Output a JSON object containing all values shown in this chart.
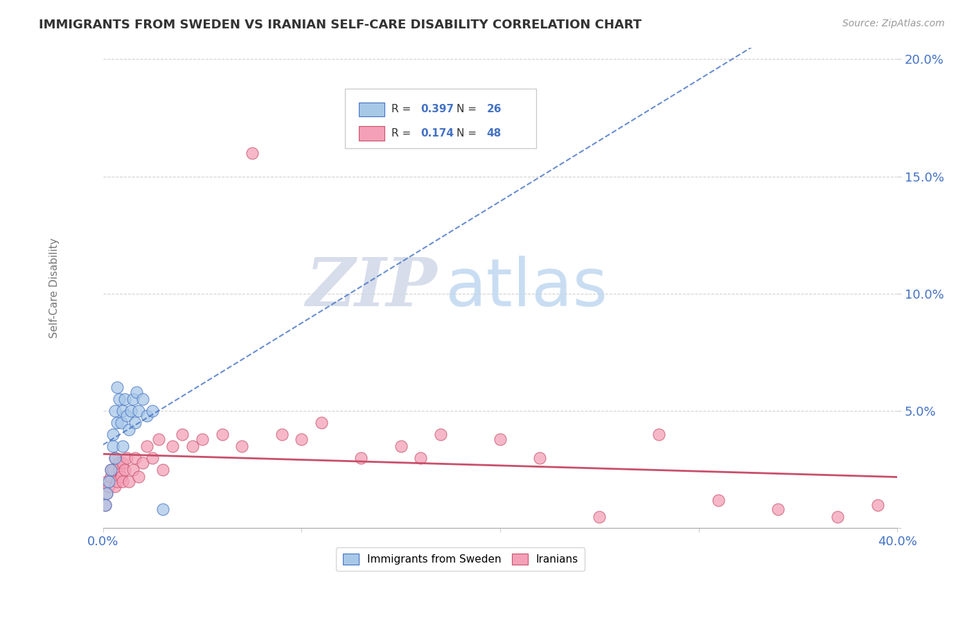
{
  "title": "IMMIGRANTS FROM SWEDEN VS IRANIAN SELF-CARE DISABILITY CORRELATION CHART",
  "source": "Source: ZipAtlas.com",
  "ylabel": "Self-Care Disability",
  "xlim": [
    0.0,
    0.4
  ],
  "ylim": [
    0.0,
    0.205
  ],
  "xticks": [
    0.0,
    0.1,
    0.2,
    0.3,
    0.4
  ],
  "xtick_labels": [
    "0.0%",
    "",
    "",
    "",
    "40.0%"
  ],
  "yticks": [
    0.0,
    0.05,
    0.1,
    0.15,
    0.2
  ],
  "ytick_labels": [
    "",
    "5.0%",
    "10.0%",
    "15.0%",
    "20.0%"
  ],
  "color_sweden": "#A8C8E8",
  "color_iran": "#F4A0B8",
  "color_line_sweden": "#4472C4",
  "color_line_iran": "#C8506A",
  "background_color": "#FFFFFF",
  "watermark_zip": "ZIP",
  "watermark_atlas": "atlas",
  "sweden_x": [
    0.001,
    0.002,
    0.003,
    0.004,
    0.005,
    0.005,
    0.006,
    0.006,
    0.007,
    0.007,
    0.008,
    0.009,
    0.01,
    0.01,
    0.011,
    0.012,
    0.013,
    0.014,
    0.015,
    0.016,
    0.017,
    0.018,
    0.02,
    0.022,
    0.025,
    0.03
  ],
  "sweden_y": [
    0.01,
    0.015,
    0.02,
    0.025,
    0.035,
    0.04,
    0.03,
    0.05,
    0.045,
    0.06,
    0.055,
    0.045,
    0.05,
    0.035,
    0.055,
    0.048,
    0.042,
    0.05,
    0.055,
    0.045,
    0.058,
    0.05,
    0.055,
    0.048,
    0.05,
    0.008
  ],
  "iran_x": [
    0.001,
    0.002,
    0.002,
    0.003,
    0.004,
    0.004,
    0.005,
    0.006,
    0.006,
    0.007,
    0.008,
    0.008,
    0.009,
    0.01,
    0.01,
    0.011,
    0.012,
    0.013,
    0.015,
    0.016,
    0.018,
    0.02,
    0.022,
    0.025,
    0.028,
    0.03,
    0.035,
    0.04,
    0.045,
    0.05,
    0.06,
    0.07,
    0.075,
    0.09,
    0.1,
    0.11,
    0.13,
    0.15,
    0.16,
    0.17,
    0.2,
    0.22,
    0.25,
    0.28,
    0.31,
    0.34,
    0.37,
    0.39
  ],
  "iran_y": [
    0.01,
    0.015,
    0.02,
    0.018,
    0.022,
    0.025,
    0.025,
    0.018,
    0.03,
    0.02,
    0.025,
    0.028,
    0.022,
    0.02,
    0.028,
    0.025,
    0.03,
    0.02,
    0.025,
    0.03,
    0.022,
    0.028,
    0.035,
    0.03,
    0.038,
    0.025,
    0.035,
    0.04,
    0.035,
    0.038,
    0.04,
    0.035,
    0.16,
    0.04,
    0.038,
    0.045,
    0.03,
    0.035,
    0.03,
    0.04,
    0.038,
    0.03,
    0.005,
    0.04,
    0.012,
    0.008,
    0.005,
    0.01
  ]
}
